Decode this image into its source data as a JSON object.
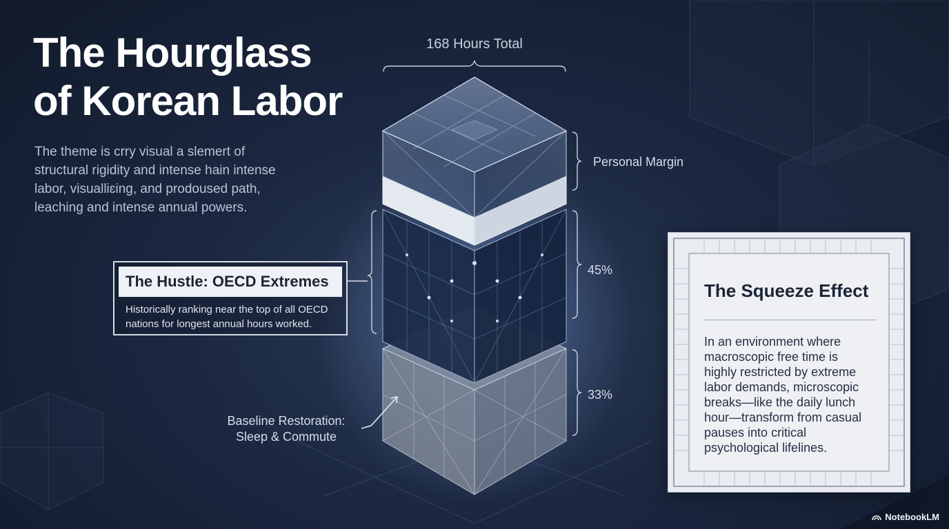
{
  "title": {
    "line1": "The Hourglass",
    "line2": "of Korean Labor"
  },
  "subtitle": {
    "lines": [
      "The theme is crry visual a slemert of",
      "structural rigidity and intense hain intense",
      "labor, visualliɛing, and prodoused path,",
      "leaching and intense annual powers."
    ]
  },
  "diagram": {
    "total_label": "168 Hours Total",
    "segments": {
      "top": {
        "label": "Personal Margin"
      },
      "middle": {
        "label": "45%",
        "value_percent": 45
      },
      "bottom": {
        "label": "33%",
        "value_percent": 33
      }
    },
    "hustle": {
      "title": "The Hustle: OECD Extremes",
      "desc_lines": [
        "Historically ranking near the top of all OECD",
        "nations for longest annual hours worked."
      ]
    },
    "baseline": {
      "lines": [
        "Baseline Restoration:",
        "Sleep & Commute"
      ]
    }
  },
  "squeeze": {
    "title": "The Squeeze Effect",
    "body_lines": [
      "In an environment where",
      "macroscopic free time is",
      "highly restricted by extreme",
      "labor demands, microscopic",
      "breaks—like the daily lunch",
      "hour—transform from casual",
      "pauses into critical",
      "psychological lifelines."
    ]
  },
  "brand": {
    "label": "NotebookLM",
    "icon": "notebooklm-logo-icon"
  },
  "colors": {
    "background": "#1b2740",
    "accent_light": "#eef1f5",
    "card": "#e9ecf1",
    "glow": "#8fb6ff"
  }
}
